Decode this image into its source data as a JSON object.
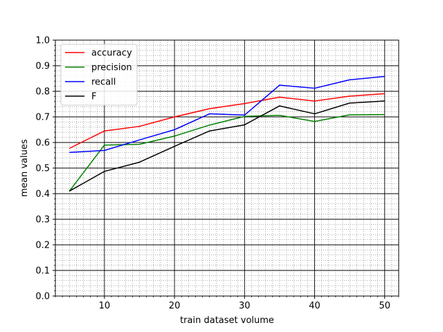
{
  "chart_data": {
    "type": "line",
    "title": "",
    "xlabel": "train dataset volume",
    "ylabel": "mean values",
    "xlim": [
      3,
      52
    ],
    "ylim": [
      0.0,
      1.0
    ],
    "x_ticks": [
      10,
      20,
      30,
      40,
      50
    ],
    "y_ticks": [
      0.0,
      0.1,
      0.2,
      0.3,
      0.4,
      0.5,
      0.6,
      0.7,
      0.8,
      0.9,
      1.0
    ],
    "y_tick_labels": [
      "0.0",
      "0.1",
      "0.2",
      "0.3",
      "0.4",
      "0.5",
      "0.6",
      "0.7",
      "0.8",
      "0.9",
      "1.0"
    ],
    "grid": "major solid, minor dotted",
    "legend_position": "top-left",
    "x": [
      5,
      10,
      15,
      20,
      25,
      30,
      35,
      40,
      45,
      50
    ],
    "series": [
      {
        "name": "accuracy",
        "color": "#ff0000",
        "values": [
          0.577,
          0.645,
          0.663,
          0.7,
          0.732,
          0.752,
          0.777,
          0.762,
          0.781,
          0.791
        ]
      },
      {
        "name": "precision",
        "color": "#008000",
        "values": [
          0.41,
          0.59,
          0.593,
          0.625,
          0.668,
          0.702,
          0.706,
          0.682,
          0.708,
          0.709
        ]
      },
      {
        "name": "recall",
        "color": "#0000ff",
        "values": [
          0.561,
          0.569,
          0.61,
          0.65,
          0.712,
          0.707,
          0.824,
          0.812,
          0.845,
          0.858
        ]
      },
      {
        "name": "F",
        "color": "#000000",
        "values": [
          0.41,
          0.487,
          0.523,
          0.585,
          0.645,
          0.669,
          0.743,
          0.712,
          0.754,
          0.762
        ]
      }
    ]
  }
}
